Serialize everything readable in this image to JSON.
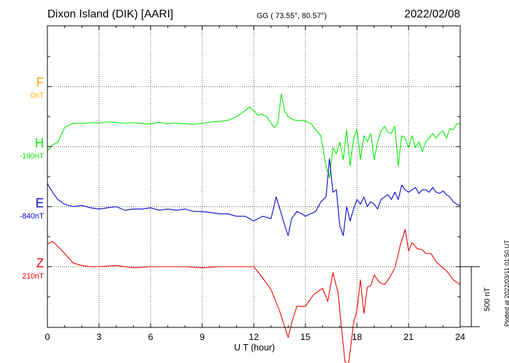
{
  "header": {
    "station": "Dixon Island (DIK)  [AARI]",
    "coords": "GG ( 73.55°,  80.57°)",
    "date": "2022/02/08"
  },
  "components": [
    {
      "name": "F",
      "baseline": "0nT",
      "color": "#ffa500"
    },
    {
      "name": "H",
      "baseline": "-190nT",
      "color": "#00ee00"
    },
    {
      "name": "E",
      "baseline": "-840nT",
      "color": "#0000cc"
    },
    {
      "name": "Z",
      "baseline": "210nT",
      "color": "#ee0000"
    }
  ],
  "scale_bar": {
    "label": "500 nT",
    "value_nT": 500
  },
  "plotted_note": "Plotted at 2022/03/11 01:50 UT",
  "chart_data": {
    "type": "line",
    "title": "Dixon Island (DIK)  [AARI]",
    "xlabel": "U T (hour)",
    "xlim": [
      0,
      24
    ],
    "x_ticks": [
      "0",
      "3",
      "6",
      "9",
      "12",
      "15",
      "18",
      "21",
      "24"
    ],
    "grid": true,
    "units": "nT",
    "series": [
      {
        "name": "F",
        "color": "#ffa500",
        "baseline_nT": 0,
        "x": [],
        "y": []
      },
      {
        "name": "H",
        "color": "#00ee00",
        "baseline_nT": -190,
        "x": [
          0,
          0.3,
          0.6,
          1,
          1.5,
          2,
          2.5,
          3,
          3.5,
          4,
          4.5,
          5,
          5.5,
          6,
          6.5,
          7,
          7.5,
          8,
          8.5,
          9,
          9.5,
          10,
          10.5,
          11,
          11.25,
          11.5,
          11.75,
          12,
          12.25,
          12.5,
          12.75,
          13,
          13.2,
          13.4,
          13.6,
          13.8,
          14,
          14.2,
          14.5,
          14.8,
          15,
          15.3,
          15.6,
          15.9,
          16.2,
          16.4,
          16.6,
          16.8,
          17,
          17.2,
          17.4,
          17.6,
          17.8,
          18,
          18.2,
          18.4,
          18.6,
          18.8,
          19,
          19.2,
          19.4,
          19.6,
          19.8,
          20,
          20.2,
          20.4,
          20.6,
          20.8,
          21,
          21.2,
          21.4,
          21.6,
          21.8,
          22,
          22.2,
          22.4,
          22.6,
          22.8,
          23,
          23.2,
          23.4,
          23.6,
          23.8,
          24
        ],
        "y": [
          -225,
          -175,
          -155,
          -30,
          5,
          0,
          10,
          5,
          15,
          10,
          5,
          10,
          0,
          0,
          10,
          0,
          5,
          0,
          -5,
          5,
          15,
          20,
          30,
          60,
          85,
          110,
          140,
          110,
          70,
          80,
          60,
          5,
          -30,
          5,
          250,
          100,
          60,
          40,
          25,
          30,
          20,
          5,
          -50,
          -100,
          -350,
          -450,
          -200,
          -250,
          -150,
          -300,
          -50,
          -350,
          -120,
          -50,
          -300,
          -100,
          -150,
          -80,
          -300,
          -150,
          -60,
          -20,
          -70,
          -80,
          -20,
          -350,
          -100,
          -120,
          -200,
          -100,
          -200,
          -150,
          -230,
          -150,
          -120,
          -80,
          -120,
          -80,
          -60,
          -120,
          -40,
          -50,
          0,
          0
        ]
      },
      {
        "name": "E",
        "color": "#0000cc",
        "baseline_nT": -840,
        "x": [
          0,
          0.3,
          0.6,
          1,
          1.5,
          2,
          2.5,
          3,
          3.5,
          4,
          4.5,
          5,
          5.5,
          6,
          6.5,
          7,
          7.5,
          8,
          8.5,
          9,
          9.5,
          10,
          10.5,
          11,
          11.5,
          12,
          12.5,
          13,
          13.3,
          13.6,
          13.8,
          14,
          14.2,
          14.5,
          14.8,
          15,
          15.3,
          15.6,
          15.9,
          16.2,
          16.4,
          16.6,
          16.8,
          17,
          17.2,
          17.4,
          17.6,
          17.8,
          18,
          18.2,
          18.4,
          18.6,
          18.8,
          19,
          19.2,
          19.4,
          19.6,
          19.8,
          20,
          20.2,
          20.4,
          20.6,
          20.8,
          21,
          21.2,
          21.4,
          21.6,
          21.8,
          22,
          22.2,
          22.4,
          22.6,
          22.8,
          23,
          23.2,
          23.4,
          23.6,
          23.8,
          24
        ],
        "y": [
          -650,
          -720,
          -780,
          -820,
          -840,
          -830,
          -850,
          -860,
          -850,
          -840,
          -870,
          -860,
          -860,
          -850,
          -870,
          -860,
          -870,
          -860,
          -880,
          -880,
          -890,
          -900,
          -900,
          -920,
          -920,
          -960,
          -920,
          -940,
          -760,
          -900,
          -1000,
          -1080,
          -940,
          -880,
          -900,
          -920,
          -900,
          -880,
          -800,
          -760,
          -440,
          -720,
          -700,
          -1000,
          -1080,
          -840,
          -960,
          -860,
          -780,
          -820,
          -760,
          -840,
          -800,
          -820,
          -860,
          -780,
          -760,
          -740,
          -780,
          -720,
          -780,
          -660,
          -700,
          -720,
          -700,
          -680,
          -730,
          -700,
          -700,
          -720,
          -680,
          -720,
          -730,
          -710,
          -740,
          -760,
          -800,
          -820,
          -830
        ]
      },
      {
        "name": "Z",
        "color": "#ee0000",
        "baseline_nT": 210,
        "x": [
          0,
          0.3,
          0.6,
          1,
          1.5,
          2,
          2.5,
          3,
          4,
          5,
          6,
          7,
          8,
          9,
          10,
          11,
          12,
          12.5,
          13,
          13.5,
          14,
          14.2,
          14.5,
          15,
          15.5,
          16,
          16.3,
          16.6,
          16.9,
          17.1,
          17.3,
          17.5,
          17.8,
          18,
          18.2,
          18.4,
          18.6,
          18.8,
          19,
          19.3,
          19.6,
          19.9,
          20.2,
          20.5,
          20.8,
          21,
          21.2,
          21.5,
          21.8,
          22,
          22.3,
          22.6,
          23,
          23.3,
          23.6,
          24
        ],
        "y": [
          400,
          420,
          380,
          320,
          240,
          220,
          210,
          210,
          220,
          200,
          210,
          210,
          210,
          200,
          210,
          210,
          210,
          120,
          20,
          -160,
          -380,
          -260,
          -120,
          -120,
          -20,
          30,
          -80,
          160,
          -10,
          -300,
          -580,
          -610,
          -260,
          -150,
          100,
          -180,
          40,
          50,
          140,
          80,
          60,
          120,
          200,
          380,
          520,
          340,
          410,
          360,
          350,
          320,
          320,
          250,
          200,
          160,
          100,
          60
        ]
      }
    ]
  }
}
